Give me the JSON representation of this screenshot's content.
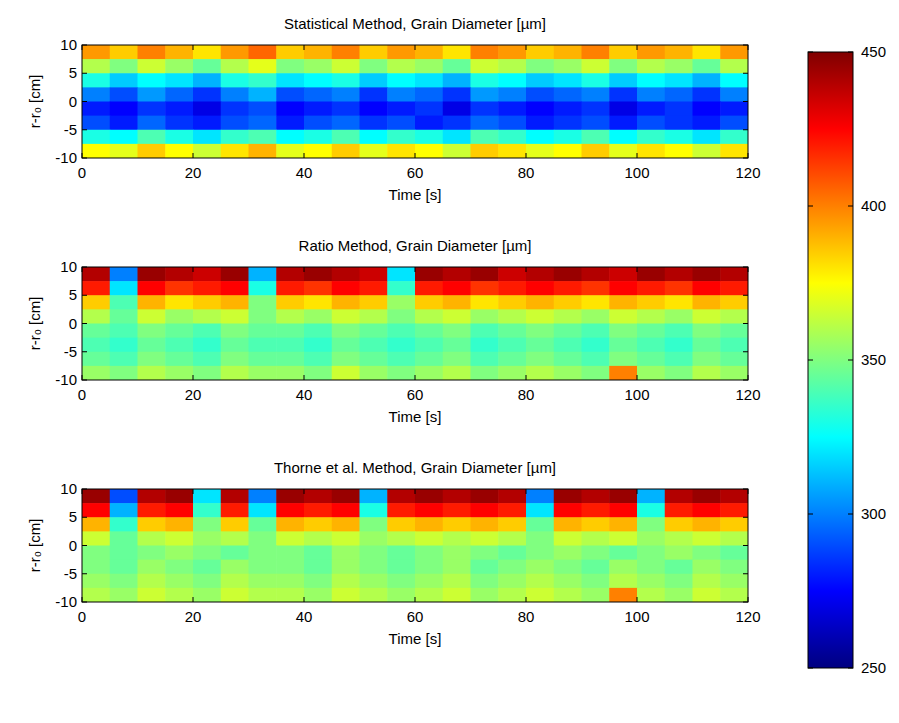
{
  "chart_data": [
    {
      "type": "heatmap",
      "title": "Statistical Method, Grain Diameter [µm]",
      "xlabel": "Time [s]",
      "ylabel": "r-r₀ [cm]",
      "xlim": [
        0,
        120
      ],
      "xticks": [
        0,
        20,
        40,
        60,
        80,
        100,
        120
      ],
      "ylim": [
        -10,
        10
      ],
      "yticks": [
        -10,
        -5,
        0,
        5,
        10
      ],
      "zlim": [
        250,
        450
      ],
      "zticks": [
        250,
        300,
        350,
        400,
        450
      ],
      "x": [
        2.5,
        7.5,
        12.5,
        17.5,
        22.5,
        27.5,
        32.5,
        37.5,
        42.5,
        47.5,
        52.5,
        57.5,
        62.5,
        67.5,
        72.5,
        77.5,
        82.5,
        87.5,
        92.5,
        97.5,
        102.5,
        107.5,
        112.5,
        117.5
      ],
      "y": [
        8.75,
        6.25,
        3.75,
        1.25,
        -1.25,
        -3.75,
        -6.25,
        -8.75
      ],
      "cells": [
        [
          395,
          385,
          400,
          390,
          380,
          395,
          405,
          385,
          390,
          400,
          385,
          395,
          390,
          380,
          400,
          395,
          385,
          390,
          400,
          385,
          395,
          390,
          380,
          395
        ],
        [
          360,
          350,
          365,
          355,
          345,
          360,
          370,
          350,
          355,
          365,
          350,
          360,
          355,
          345,
          365,
          360,
          350,
          355,
          365,
          350,
          360,
          355,
          345,
          360
        ],
        [
          330,
          315,
          325,
          320,
          310,
          330,
          335,
          320,
          325,
          330,
          315,
          325,
          320,
          310,
          330,
          325,
          315,
          320,
          330,
          315,
          325,
          320,
          310,
          325
        ],
        [
          300,
          290,
          305,
          295,
          285,
          300,
          310,
          290,
          295,
          300,
          285,
          300,
          295,
          285,
          305,
          300,
          290,
          295,
          300,
          285,
          300,
          295,
          285,
          300
        ],
        [
          280,
          275,
          285,
          280,
          270,
          285,
          290,
          275,
          280,
          285,
          275,
          280,
          285,
          270,
          285,
          280,
          275,
          280,
          285,
          270,
          280,
          285,
          275,
          280
        ],
        [
          290,
          280,
          295,
          285,
          280,
          290,
          295,
          280,
          290,
          295,
          285,
          290,
          280,
          285,
          295,
          290,
          280,
          285,
          290,
          280,
          290,
          285,
          280,
          290
        ],
        [
          330,
          325,
          340,
          330,
          320,
          335,
          340,
          325,
          330,
          340,
          325,
          335,
          330,
          320,
          340,
          335,
          325,
          330,
          340,
          325,
          335,
          330,
          320,
          335
        ],
        [
          375,
          370,
          385,
          375,
          365,
          380,
          390,
          370,
          375,
          385,
          370,
          380,
          375,
          365,
          385,
          380,
          370,
          375,
          385,
          370,
          380,
          375,
          365,
          380
        ]
      ]
    },
    {
      "type": "heatmap",
      "title": "Ratio Method, Grain Diameter [µm]",
      "xlabel": "Time [s]",
      "ylabel": "r-r₀ [cm]",
      "xlim": [
        0,
        120
      ],
      "xticks": [
        0,
        20,
        40,
        60,
        80,
        100,
        120
      ],
      "ylim": [
        -10,
        10
      ],
      "yticks": [
        -10,
        -5,
        0,
        5,
        10
      ],
      "x": [
        2.5,
        7.5,
        12.5,
        17.5,
        22.5,
        27.5,
        32.5,
        37.5,
        42.5,
        47.5,
        52.5,
        57.5,
        62.5,
        67.5,
        72.5,
        77.5,
        82.5,
        87.5,
        92.5,
        97.5,
        102.5,
        107.5,
        112.5,
        117.5
      ],
      "y": [
        8.75,
        6.25,
        3.75,
        1.25,
        -1.25,
        -3.75,
        -6.25,
        -8.75
      ],
      "cells": [
        [
          440,
          300,
          445,
          440,
          435,
          445,
          310,
          440,
          445,
          440,
          435,
          320,
          445,
          440,
          445,
          435,
          440,
          445,
          440,
          435,
          445,
          440,
          445,
          440
        ],
        [
          420,
          320,
          425,
          415,
          420,
          425,
          330,
          420,
          415,
          425,
          420,
          335,
          420,
          425,
          415,
          420,
          425,
          420,
          415,
          425,
          420,
          415,
          425,
          420
        ],
        [
          385,
          340,
          390,
          380,
          385,
          390,
          350,
          385,
          380,
          390,
          385,
          355,
          385,
          390,
          380,
          385,
          390,
          385,
          380,
          390,
          385,
          380,
          390,
          385
        ],
        [
          360,
          345,
          365,
          355,
          360,
          365,
          350,
          360,
          355,
          365,
          360,
          350,
          360,
          365,
          355,
          360,
          365,
          360,
          355,
          365,
          360,
          355,
          365,
          360
        ],
        [
          345,
          340,
          350,
          345,
          340,
          350,
          345,
          345,
          340,
          350,
          345,
          340,
          345,
          350,
          340,
          345,
          350,
          345,
          340,
          350,
          345,
          340,
          350,
          345
        ],
        [
          340,
          335,
          345,
          340,
          335,
          345,
          340,
          340,
          335,
          345,
          340,
          335,
          340,
          345,
          335,
          340,
          345,
          340,
          335,
          345,
          340,
          335,
          345,
          340
        ],
        [
          345,
          340,
          350,
          345,
          340,
          350,
          345,
          345,
          340,
          350,
          345,
          340,
          345,
          350,
          340,
          345,
          350,
          345,
          340,
          350,
          345,
          340,
          350,
          345
        ],
        [
          355,
          350,
          360,
          355,
          350,
          360,
          355,
          355,
          350,
          365,
          355,
          350,
          355,
          360,
          350,
          355,
          360,
          355,
          350,
          400,
          355,
          350,
          360,
          355
        ]
      ]
    },
    {
      "type": "heatmap",
      "title": "Thorne et al. Method, Grain Diameter [µm]",
      "xlabel": "Time [s]",
      "ylabel": "r-r₀ [cm]",
      "xlim": [
        0,
        120
      ],
      "xticks": [
        0,
        20,
        40,
        60,
        80,
        100,
        120
      ],
      "ylim": [
        -10,
        10
      ],
      "yticks": [
        -10,
        -5,
        0,
        5,
        10
      ],
      "x": [
        2.5,
        7.5,
        12.5,
        17.5,
        22.5,
        27.5,
        32.5,
        37.5,
        42.5,
        47.5,
        52.5,
        57.5,
        62.5,
        67.5,
        72.5,
        77.5,
        82.5,
        87.5,
        92.5,
        97.5,
        102.5,
        107.5,
        112.5,
        117.5
      ],
      "y": [
        8.75,
        6.25,
        3.75,
        1.25,
        -1.25,
        -3.75,
        -6.25,
        -8.75
      ],
      "cells": [
        [
          445,
          290,
          440,
          445,
          320,
          440,
          300,
          445,
          440,
          445,
          310,
          440,
          445,
          440,
          445,
          440,
          300,
          445,
          440,
          445,
          310,
          440,
          445,
          440
        ],
        [
          425,
          310,
          420,
          425,
          335,
          420,
          320,
          425,
          420,
          425,
          330,
          420,
          425,
          420,
          425,
          420,
          320,
          425,
          420,
          425,
          330,
          420,
          425,
          420
        ],
        [
          390,
          335,
          385,
          390,
          350,
          385,
          345,
          390,
          385,
          390,
          350,
          385,
          390,
          385,
          390,
          385,
          345,
          390,
          385,
          390,
          350,
          385,
          390,
          385
        ],
        [
          365,
          345,
          360,
          365,
          355,
          360,
          350,
          365,
          360,
          365,
          355,
          360,
          365,
          360,
          365,
          360,
          350,
          365,
          360,
          365,
          355,
          360,
          365,
          360
        ],
        [
          350,
          345,
          350,
          355,
          350,
          345,
          350,
          350,
          345,
          355,
          350,
          345,
          350,
          355,
          350,
          345,
          350,
          355,
          350,
          345,
          350,
          355,
          350,
          345
        ],
        [
          350,
          345,
          355,
          350,
          345,
          355,
          350,
          350,
          345,
          355,
          350,
          345,
          350,
          355,
          345,
          350,
          355,
          350,
          345,
          355,
          350,
          345,
          355,
          350
        ],
        [
          355,
          350,
          360,
          355,
          350,
          360,
          355,
          355,
          350,
          360,
          355,
          350,
          355,
          360,
          350,
          355,
          360,
          355,
          350,
          360,
          355,
          350,
          360,
          355
        ],
        [
          360,
          355,
          365,
          360,
          355,
          365,
          360,
          360,
          355,
          365,
          360,
          355,
          360,
          365,
          355,
          360,
          365,
          360,
          355,
          400,
          360,
          355,
          365,
          360
        ]
      ]
    }
  ]
}
